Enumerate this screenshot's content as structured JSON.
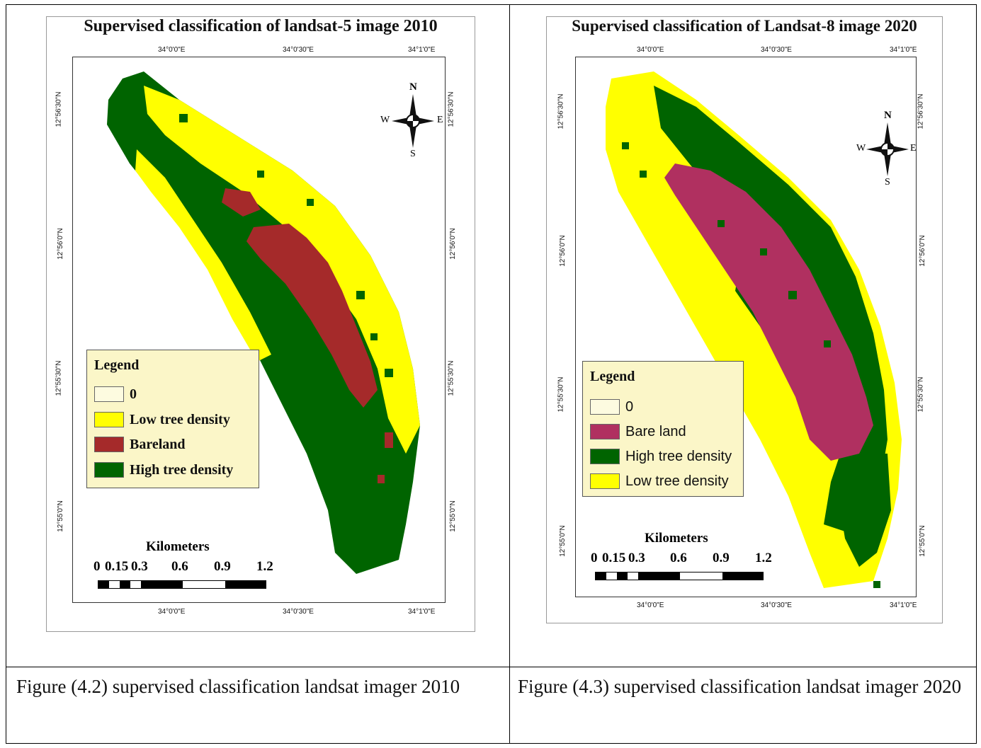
{
  "maps": [
    {
      "title": "Supervised classification of landsat-5 image 2010",
      "top_ticks": [
        "34°0'0\"E",
        "34°0'30\"E",
        "34°1'0\"E"
      ],
      "bottom_ticks": [
        "34°0'0\"E",
        "34°0'30\"E",
        "34°1'0\"E"
      ],
      "left_ticks": [
        "12°56'30\"N",
        "12°56'0\"N",
        "12°55'30\"N",
        "12°55'0\"N"
      ],
      "right_ticks": [
        "12°56'30\"N",
        "12°56'0\"N",
        "12°55'30\"N",
        "12°55'0\"N"
      ],
      "compass": {
        "n": "N",
        "s": "S",
        "e": "E",
        "w": "W"
      },
      "legend": {
        "title": "Legend",
        "items": [
          {
            "label": "0",
            "color": "#fdfbe0"
          },
          {
            "label": "Low tree density",
            "color": "#ffff00"
          },
          {
            "label": "Bareland",
            "color": "#a52a2a"
          },
          {
            "label": "High tree density",
            "color": "#006400"
          }
        ]
      },
      "scale": {
        "title": "Kilometers",
        "labels": [
          "0",
          "0.15",
          "0.3",
          "0.6",
          "0.9",
          "1.2"
        ]
      }
    },
    {
      "title": "Supervised classification of Landsat-8 image 2020",
      "top_ticks": [
        "34°0'0\"E",
        "34°0'30\"E",
        "34°1'0\"E"
      ],
      "bottom_ticks": [
        "34°0'0\"E",
        "34°0'30\"E",
        "34°1'0\"E"
      ],
      "left_ticks": [
        "12°56'30\"N",
        "12°56'0\"N",
        "12°55'30\"N",
        "12°55'0\"N"
      ],
      "right_ticks": [
        "12°56'30\"N",
        "12°56'0\"N",
        "12°55'30\"N",
        "12°55'0\"N"
      ],
      "compass": {
        "n": "N",
        "s": "S",
        "e": "E",
        "w": "W"
      },
      "legend": {
        "title": "Legend",
        "items": [
          {
            "label": "0",
            "color": "#fdfbe0"
          },
          {
            "label": "Bare land",
            "color": "#b03060"
          },
          {
            "label": "High tree density",
            "color": "#006400"
          },
          {
            "label": "Low tree density",
            "color": "#ffff00"
          }
        ]
      },
      "scale": {
        "title": "Kilometers",
        "labels": [
          "0",
          "0.15",
          "0.3",
          "0.6",
          "0.9",
          "1.2"
        ]
      }
    }
  ],
  "captions": [
    "Figure (4.2) supervised classification landsat imager 2010",
    "Figure (4.3) supervised classification landsat imager 2020"
  ],
  "colors": {
    "low_tree": "#ffff00",
    "high_tree": "#006400",
    "bareland_2010": "#a52a2a",
    "bareland_2020": "#b03060"
  }
}
